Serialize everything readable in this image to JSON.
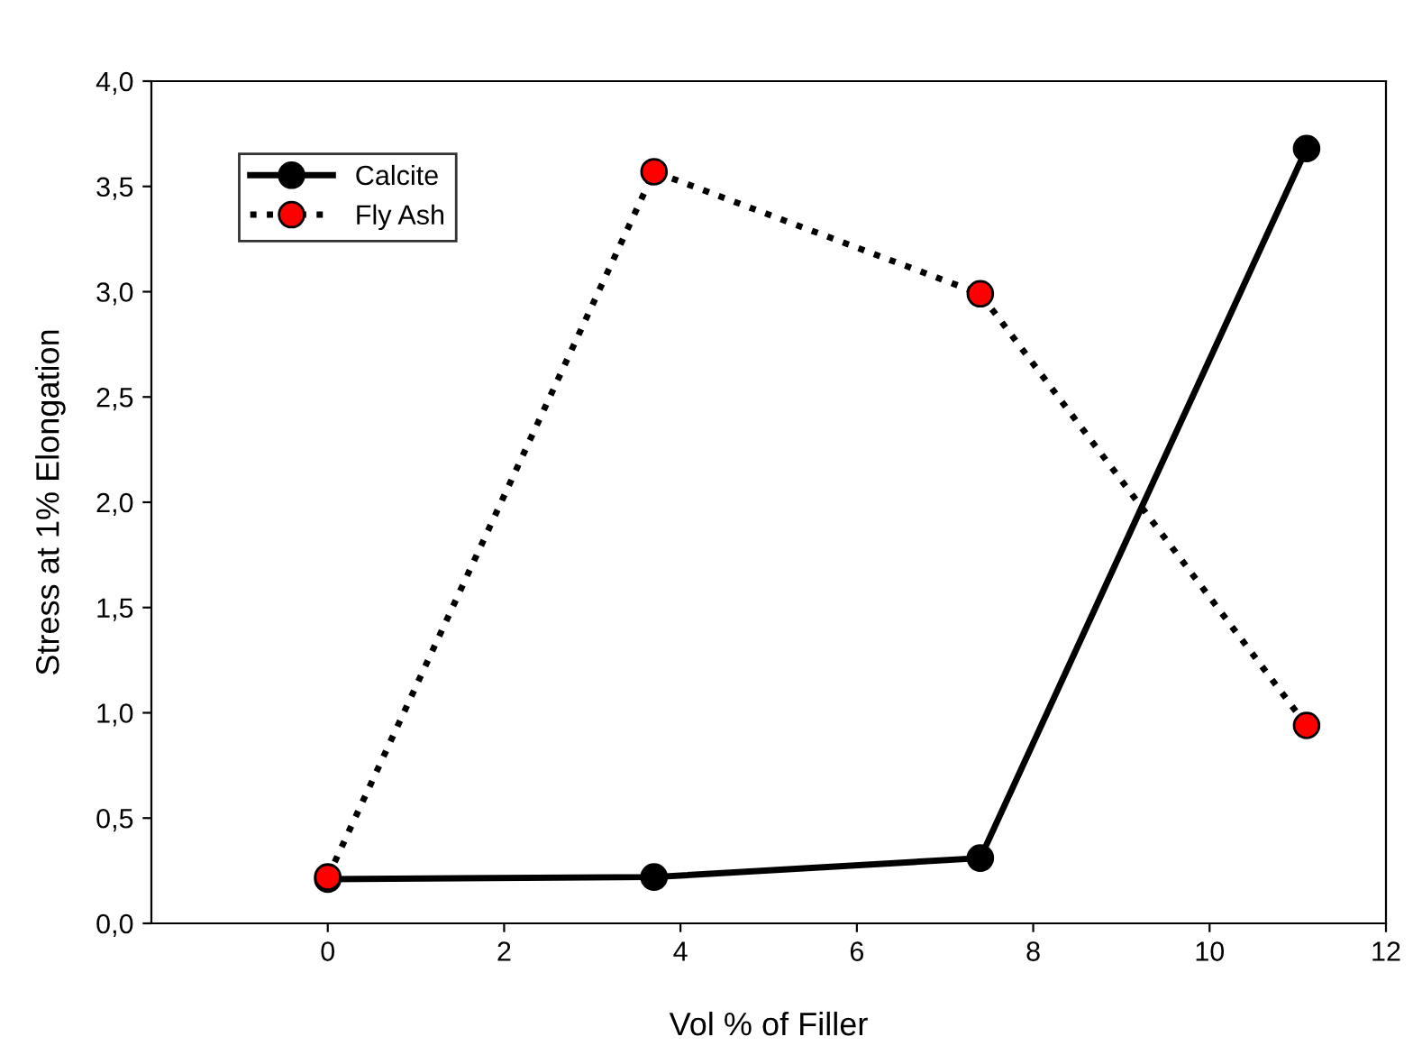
{
  "chart_data": {
    "type": "line",
    "xlabel": "Vol % of Filler",
    "ylabel": "Stress at 1% Elongation",
    "xlim": [
      -2,
      12
    ],
    "xticks": [
      0,
      2,
      4,
      6,
      8,
      10,
      12
    ],
    "ylim": [
      0,
      4
    ],
    "yticks": [
      {
        "value": 0,
        "label": "0,0"
      },
      {
        "value": 0.5,
        "label": "0,5"
      },
      {
        "value": 1,
        "label": "1,0"
      },
      {
        "value": 1.5,
        "label": "1,5"
      },
      {
        "value": 2,
        "label": "2,0"
      },
      {
        "value": 2.5,
        "label": "2,5"
      },
      {
        "value": 3,
        "label": "3,0"
      },
      {
        "value": 3.5,
        "label": "3,5"
      },
      {
        "value": 4,
        "label": "4,0"
      }
    ],
    "x": [
      0,
      3.7,
      7.4,
      11.1
    ],
    "series": [
      {
        "name": "Calcite",
        "color": "#000000",
        "values": [
          0.21,
          0.22,
          0.31,
          3.68
        ],
        "line_style": "solid"
      },
      {
        "name": "Fly Ash",
        "color": "#ff0000",
        "values": [
          0.22,
          3.57,
          2.99,
          0.94
        ],
        "line_style": "dotted"
      }
    ],
    "marker": "circle",
    "legend": "top left",
    "grid": false
  }
}
